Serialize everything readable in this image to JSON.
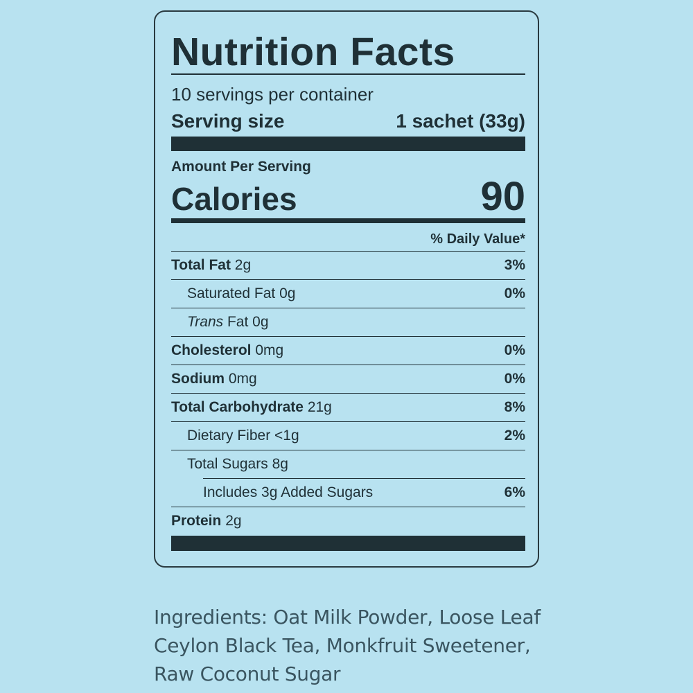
{
  "title": "Nutrition Facts",
  "servings_per_container": "10 servings per container",
  "serving_size_label": "Serving size",
  "serving_size_value": "1 sachet (33g)",
  "amount_per_serving": "Amount Per Serving",
  "calories_label": "Calories",
  "calories_value": "90",
  "daily_value_header": "% Daily Value*",
  "nutrients": [
    {
      "name": "Total Fat",
      "amount": "2g",
      "dv": "3%"
    },
    {
      "name": "Saturated Fat",
      "amount": "0g",
      "dv": "0%"
    },
    {
      "name": "Trans",
      "name_rest": "Fat",
      "amount": "0g",
      "dv": ""
    },
    {
      "name": "Cholesterol",
      "amount": "0mg",
      "dv": "0%"
    },
    {
      "name": "Sodium",
      "amount": "0mg",
      "dv": "0%"
    },
    {
      "name": "Total Carbohydrate",
      "amount": "21g",
      "dv": "8%"
    },
    {
      "name": "Dietary Fiber",
      "amount": "<1g",
      "dv": "2%"
    },
    {
      "name": "Total Sugars",
      "amount": "8g",
      "dv": ""
    },
    {
      "name": "Includes 3g Added Sugars",
      "amount": "",
      "dv": "6%"
    },
    {
      "name": "Protein",
      "amount": "2g",
      "dv": ""
    }
  ],
  "ingredients": "Ingredients: Oat Milk Powder, Loose Leaf Ceylon Black Tea, Monkfruit Sweetener, Raw Coconut Sugar",
  "colors": {
    "background": "#b8e2f0",
    "text": "#1f3036",
    "ingredients_text": "#3a5560"
  }
}
